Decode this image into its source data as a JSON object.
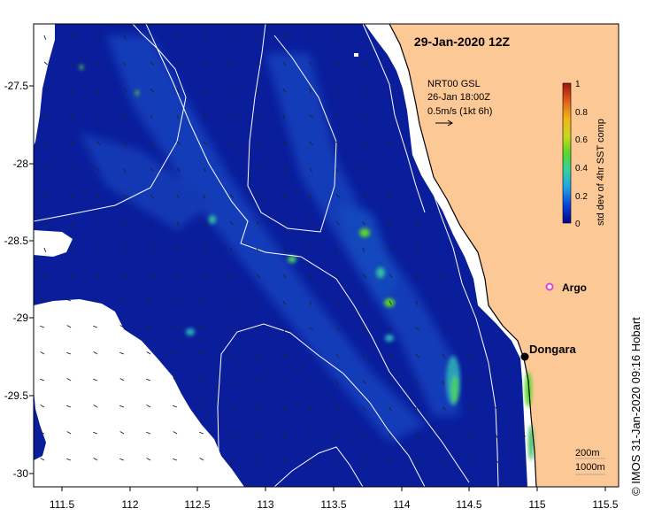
{
  "title": "29-Jan-2020 12Z",
  "current_info": {
    "model": "NRT00 GSL",
    "time": "26-Jan 18:00Z",
    "scale": "0.5m/s (1kt 6h)"
  },
  "colorbar": {
    "label": "std dev of 4hr SST comp",
    "ticks": [
      "0",
      "0.2",
      "0.4",
      "0.6",
      "0.8",
      "1"
    ],
    "colors": [
      "#00008b",
      "#0a3fd8",
      "#1ea0e6",
      "#36d0a0",
      "#5ad62a",
      "#c8d81c",
      "#f0b418",
      "#e0581a",
      "#9e1010"
    ]
  },
  "x_axis": {
    "ticks": [
      "111.5",
      "112",
      "112.5",
      "113",
      "113.5",
      "114",
      "114.5",
      "115",
      "115.5"
    ]
  },
  "y_axis": {
    "ticks": [
      "-27.5",
      "-28",
      "-28.5",
      "-29",
      "-29.5",
      "-30"
    ]
  },
  "places": {
    "argo": {
      "label": "Argo",
      "color": "#e040e0"
    },
    "dongara": {
      "label": "Dongara"
    }
  },
  "contours": {
    "label_200": "200m",
    "label_1000": "1000m"
  },
  "credit": "© IMOS 31-Jan-2020 09:16 Hobart",
  "colors": {
    "land": "#fcc896",
    "ocean": "#0a1e9c",
    "contour": "#ffffff"
  }
}
